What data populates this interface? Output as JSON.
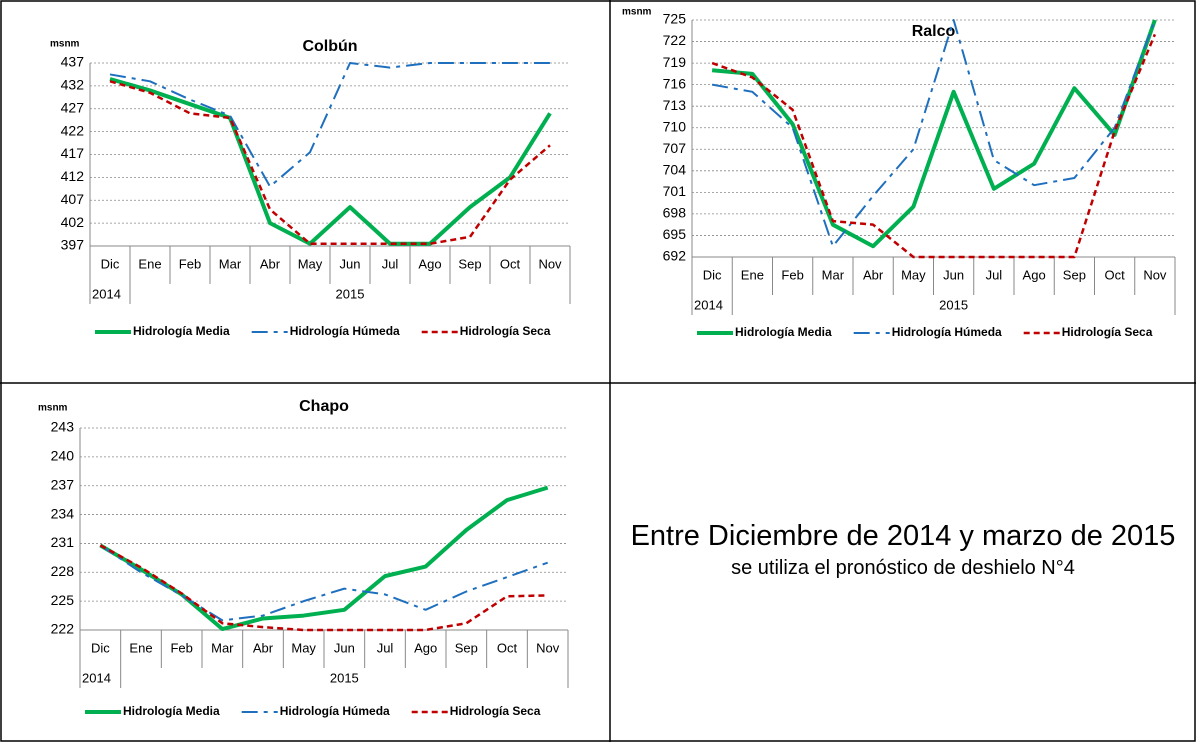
{
  "chart_data": [
    {
      "type": "line",
      "title": "Colbún",
      "y_label": "msnm",
      "categories": [
        "Dic",
        "Ene",
        "Feb",
        "Mar",
        "Abr",
        "May",
        "Jun",
        "Jul",
        "Ago",
        "Sep",
        "Oct",
        "Nov"
      ],
      "year_labels": [
        "2014",
        "2015"
      ],
      "ylim": [
        397,
        437
      ],
      "yticks": [
        397,
        402,
        407,
        412,
        417,
        422,
        427,
        432,
        437
      ],
      "grid": true,
      "series": [
        {
          "name": "Hidrología Media",
          "color": "#00b050",
          "style": "solid",
          "values": [
            433.5,
            431,
            428,
            425,
            402,
            397.5,
            405.5,
            397.5,
            397.5,
            405.5,
            412,
            426
          ]
        },
        {
          "name": "Hidrología Húmeda",
          "color": "#1f6fbf",
          "style": "dashdot",
          "values": [
            434.5,
            433,
            429,
            425.5,
            410,
            417.5,
            437,
            436,
            437,
            437,
            437,
            437
          ]
        },
        {
          "name": "Hidrología Seca",
          "color": "#c00000",
          "style": "dashed",
          "values": [
            433,
            430.5,
            426,
            425,
            405,
            397.5,
            397.5,
            397.5,
            397.5,
            399,
            411.5,
            419
          ]
        }
      ]
    },
    {
      "type": "line",
      "title": "Ralco",
      "y_label": "msnm",
      "categories": [
        "Dic",
        "Ene",
        "Feb",
        "Mar",
        "Abr",
        "May",
        "Jun",
        "Jul",
        "Ago",
        "Sep",
        "Oct",
        "Nov"
      ],
      "year_labels": [
        "2014",
        "2015"
      ],
      "ylim": [
        692,
        725
      ],
      "yticks": [
        692,
        695,
        698,
        701,
        704,
        707,
        710,
        713,
        716,
        719,
        722,
        725
      ],
      "grid": true,
      "series": [
        {
          "name": "Hidrología Media",
          "color": "#00b050",
          "style": "solid",
          "values": [
            718,
            717.5,
            710.5,
            696.5,
            693.5,
            699,
            715,
            701.5,
            705,
            715.5,
            709,
            725
          ]
        },
        {
          "name": "Hidrología Húmeda",
          "color": "#1f6fbf",
          "style": "dashdot",
          "values": [
            716,
            715,
            710,
            693.5,
            700.5,
            707,
            725,
            705.5,
            702,
            703,
            710,
            725
          ]
        },
        {
          "name": "Hidrología Seca",
          "color": "#c00000",
          "style": "dashed",
          "values": [
            719,
            717,
            712.5,
            697,
            696.5,
            692,
            692,
            692,
            692,
            692,
            709.5,
            723
          ]
        }
      ]
    },
    {
      "type": "line",
      "title": "Chapo",
      "y_label": "msnm",
      "categories": [
        "Dic",
        "Ene",
        "Feb",
        "Mar",
        "Abr",
        "May",
        "Jun",
        "Jul",
        "Ago",
        "Sep",
        "Oct",
        "Nov"
      ],
      "year_labels": [
        "2014",
        "2015"
      ],
      "ylim": [
        222,
        243
      ],
      "yticks": [
        222,
        225,
        228,
        231,
        234,
        237,
        240,
        243
      ],
      "grid": true,
      "series": [
        {
          "name": "Hidrología Media",
          "color": "#00b050",
          "style": "solid",
          "values": [
            230.8,
            228.3,
            225.7,
            222.1,
            223.2,
            223.5,
            224.1,
            227.6,
            228.6,
            232.4,
            235.5,
            236.8
          ]
        },
        {
          "name": "Hidrología Húmeda",
          "color": "#1f6fbf",
          "style": "dashdot",
          "values": [
            230.8,
            228,
            225.6,
            223,
            223.5,
            225,
            226.3,
            225.7,
            224.1,
            226,
            227.5,
            229
          ]
        },
        {
          "name": "Hidrología Seca",
          "color": "#c00000",
          "style": "dashed",
          "values": [
            230.8,
            228.5,
            225.8,
            222.7,
            222.3,
            222,
            222,
            222,
            222,
            222.7,
            225.5,
            225.6
          ]
        }
      ]
    }
  ],
  "note": {
    "main": "Entre Diciembre de 2014 y marzo de 2015",
    "sub": "se utiliza el pronóstico de deshielo N°4"
  }
}
